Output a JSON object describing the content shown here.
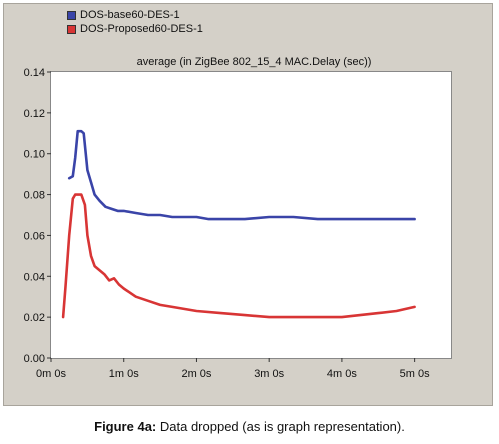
{
  "legend": [
    {
      "name": "DOS-base60-DES-1",
      "color": "#3a44a8"
    },
    {
      "name": "DOS-Proposed60-DES-1",
      "color": "#d83535"
    }
  ],
  "chart_data": {
    "type": "line",
    "title": "average (in ZigBee 802_15_4 MAC.Delay (sec))",
    "xlabel": "",
    "ylabel": "",
    "xlim": [
      0,
      330
    ],
    "ylim": [
      0,
      0.14
    ],
    "x_unit": "seconds",
    "x_ticks": [
      0,
      60,
      120,
      180,
      240,
      300
    ],
    "x_tick_labels": [
      "0m 0s",
      "1m 0s",
      "2m 0s",
      "3m 0s",
      "4m 0s",
      "5m 0s"
    ],
    "y_ticks": [
      0,
      0.02,
      0.04,
      0.06,
      0.08,
      0.1,
      0.12,
      0.14
    ],
    "y_tick_labels": [
      "0.00",
      "0.02",
      "0.04",
      "0.06",
      "0.08",
      "0.10",
      "0.12",
      "0.14"
    ],
    "grid": false,
    "legend_position": "top-left",
    "series": [
      {
        "name": "DOS-base60-DES-1",
        "color": "#3a44a8",
        "x": [
          15,
          18,
          20,
          22,
          25,
          27,
          30,
          33,
          36,
          40,
          45,
          50,
          55,
          60,
          70,
          80,
          90,
          100,
          110,
          120,
          130,
          140,
          150,
          160,
          180,
          200,
          220,
          240,
          260,
          280,
          300
        ],
        "y": [
          0.088,
          0.089,
          0.098,
          0.111,
          0.111,
          0.11,
          0.092,
          0.086,
          0.08,
          0.077,
          0.074,
          0.073,
          0.072,
          0.072,
          0.071,
          0.07,
          0.07,
          0.069,
          0.069,
          0.069,
          0.068,
          0.068,
          0.068,
          0.068,
          0.069,
          0.069,
          0.068,
          0.068,
          0.068,
          0.068,
          0.068
        ]
      },
      {
        "name": "DOS-Proposed60-DES-1",
        "color": "#d83535",
        "x": [
          10,
          12,
          15,
          18,
          20,
          22,
          25,
          28,
          30,
          33,
          36,
          40,
          44,
          48,
          52,
          56,
          60,
          70,
          80,
          90,
          100,
          120,
          140,
          160,
          180,
          200,
          220,
          240,
          255,
          270,
          285,
          300
        ],
        "y": [
          0.02,
          0.035,
          0.06,
          0.078,
          0.08,
          0.08,
          0.08,
          0.075,
          0.06,
          0.05,
          0.045,
          0.043,
          0.041,
          0.038,
          0.039,
          0.036,
          0.034,
          0.03,
          0.028,
          0.026,
          0.025,
          0.023,
          0.022,
          0.021,
          0.02,
          0.02,
          0.02,
          0.02,
          0.021,
          0.022,
          0.023,
          0.025
        ]
      }
    ]
  },
  "caption": {
    "label": "Figure 4a:",
    "text": "Data dropped (as is graph representation)."
  }
}
